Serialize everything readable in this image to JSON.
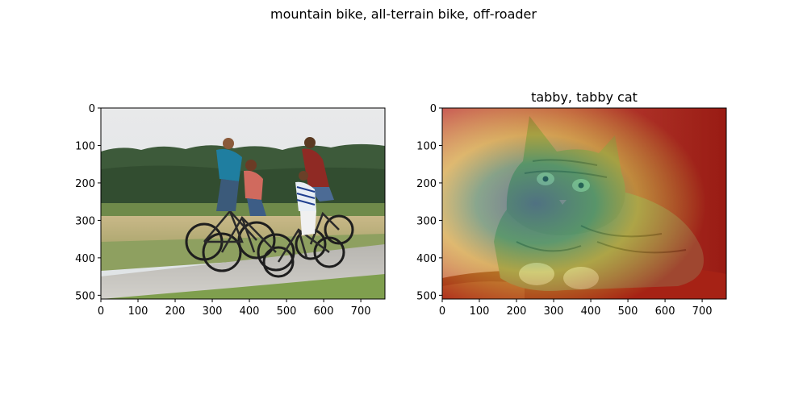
{
  "figure": {
    "suptitle": "mountain bike, all-terrain bike, off-roader"
  },
  "panels": [
    {
      "title": "",
      "image_alt": "photo of family riding bicycles on a rural road",
      "x_ticks": [
        "0",
        "100",
        "200",
        "300",
        "400",
        "500",
        "600",
        "700"
      ],
      "y_ticks": [
        "0",
        "100",
        "200",
        "300",
        "400",
        "500"
      ]
    },
    {
      "title": "tabby, tabby cat",
      "image_alt": "tabby cat lying on red cushion with heatmap overlay",
      "x_ticks": [
        "0",
        "100",
        "200",
        "300",
        "400",
        "500",
        "600",
        "700"
      ],
      "y_ticks": [
        "0",
        "100",
        "200",
        "300",
        "400",
        "500"
      ]
    }
  ]
}
